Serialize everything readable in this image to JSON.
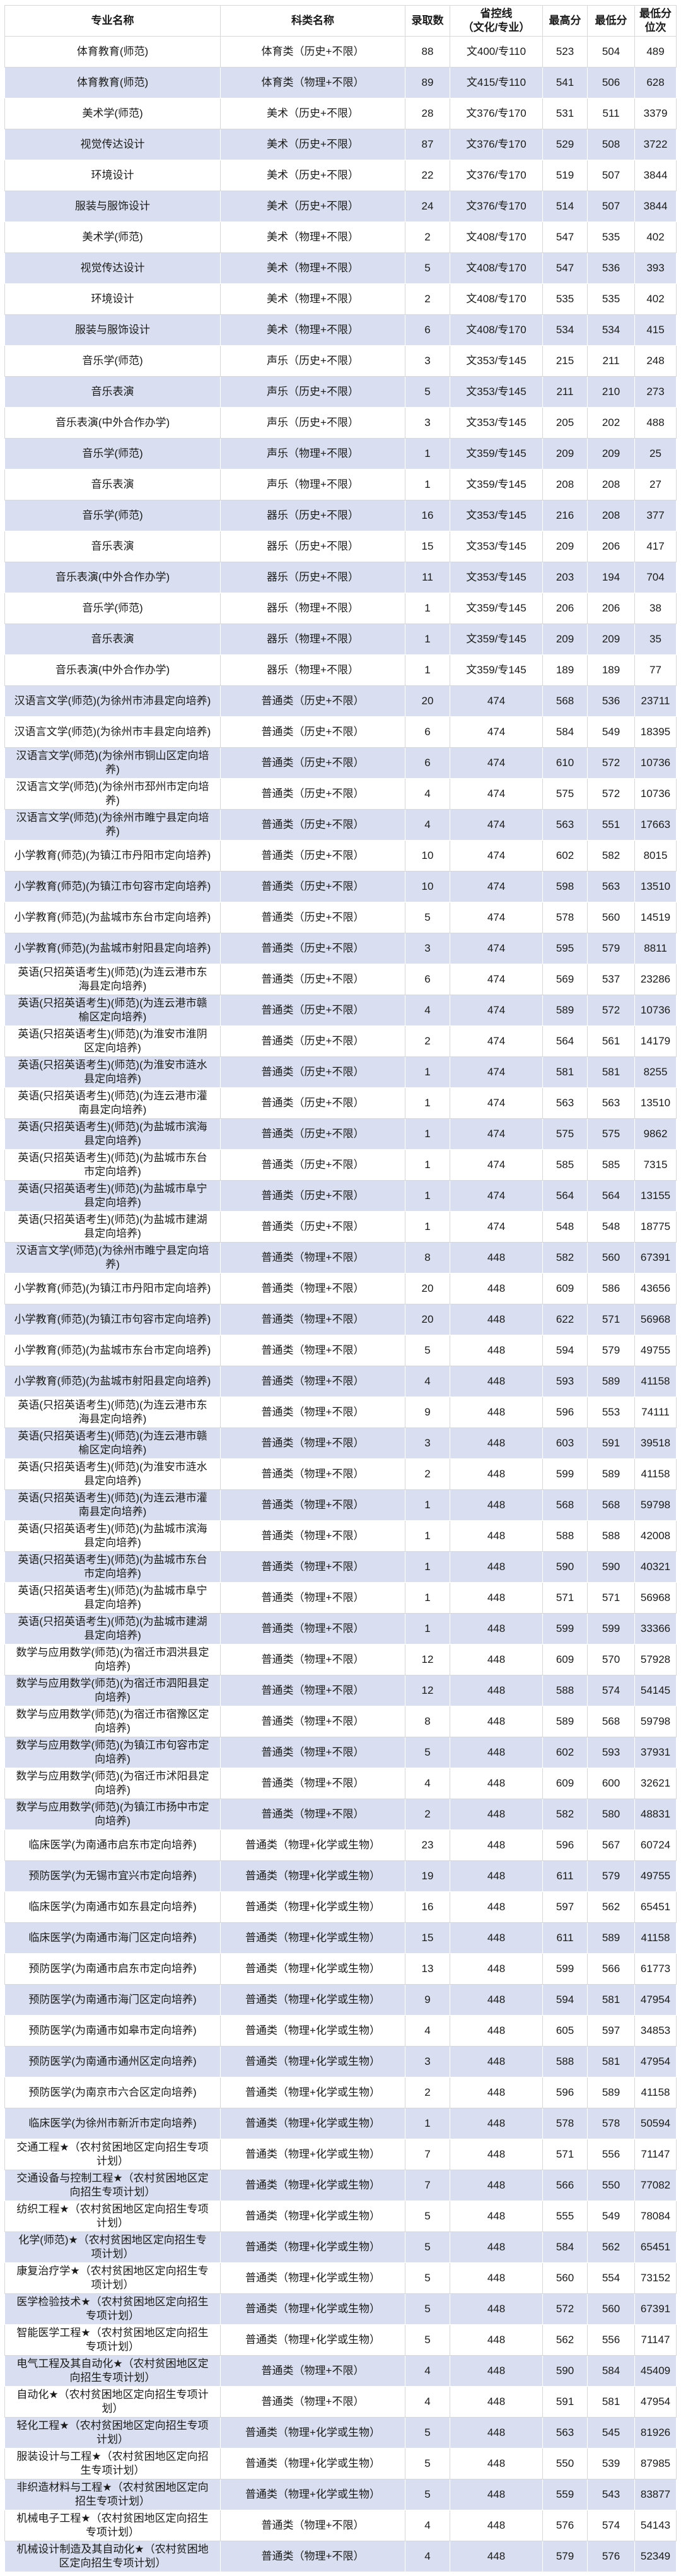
{
  "colors": {
    "row_alt_background": "#d9dff0",
    "row_background": "#ffffff",
    "grid_line": "#d8d8d8",
    "text": "#1a1a1a"
  },
  "table": {
    "columns": [
      "专业名称",
      "科类名称",
      "录取数",
      "省控线\n（文化/专业）",
      "最高分",
      "最低分",
      "最低分\n位次"
    ],
    "rows": [
      [
        "体育教育(师范)",
        "体育类（历史+不限）",
        "88",
        "文400/专110",
        "523",
        "504",
        "489"
      ],
      [
        "体育教育(师范)",
        "体育类（物理+不限）",
        "89",
        "文415/专110",
        "541",
        "506",
        "628"
      ],
      [
        "美术学(师范)",
        "美术（历史+不限）",
        "28",
        "文376/专170",
        "531",
        "511",
        "3379"
      ],
      [
        "视觉传达设计",
        "美术（历史+不限）",
        "87",
        "文376/专170",
        "529",
        "508",
        "3722"
      ],
      [
        "环境设计",
        "美术（历史+不限）",
        "22",
        "文376/专170",
        "519",
        "507",
        "3844"
      ],
      [
        "服装与服饰设计",
        "美术（历史+不限）",
        "24",
        "文376/专170",
        "514",
        "507",
        "3844"
      ],
      [
        "美术学(师范)",
        "美术（物理+不限）",
        "2",
        "文408/专170",
        "547",
        "535",
        "402"
      ],
      [
        "视觉传达设计",
        "美术（物理+不限）",
        "5",
        "文408/专170",
        "547",
        "536",
        "393"
      ],
      [
        "环境设计",
        "美术（物理+不限）",
        "2",
        "文408/专170",
        "535",
        "535",
        "402"
      ],
      [
        "服装与服饰设计",
        "美术（物理+不限）",
        "6",
        "文408/专170",
        "534",
        "534",
        "415"
      ],
      [
        "音乐学(师范)",
        "声乐（历史+不限）",
        "3",
        "文353/专145",
        "215",
        "211",
        "248"
      ],
      [
        "音乐表演",
        "声乐（历史+不限）",
        "5",
        "文353/专145",
        "211",
        "210",
        "273"
      ],
      [
        "音乐表演(中外合作办学)",
        "声乐（历史+不限）",
        "3",
        "文353/专145",
        "205",
        "202",
        "488"
      ],
      [
        "音乐学(师范)",
        "声乐（物理+不限）",
        "1",
        "文359/专145",
        "209",
        "209",
        "25"
      ],
      [
        "音乐表演",
        "声乐（物理+不限）",
        "1",
        "文359/专145",
        "208",
        "208",
        "27"
      ],
      [
        "音乐学(师范)",
        "器乐（历史+不限）",
        "16",
        "文353/专145",
        "216",
        "208",
        "377"
      ],
      [
        "音乐表演",
        "器乐（历史+不限）",
        "15",
        "文353/专145",
        "209",
        "206",
        "417"
      ],
      [
        "音乐表演(中外合作办学)",
        "器乐（历史+不限）",
        "11",
        "文353/专145",
        "203",
        "194",
        "704"
      ],
      [
        "音乐学(师范)",
        "器乐（物理+不限）",
        "1",
        "文359/专145",
        "206",
        "206",
        "38"
      ],
      [
        "音乐表演",
        "器乐（物理+不限）",
        "1",
        "文359/专145",
        "209",
        "209",
        "35"
      ],
      [
        "音乐表演(中外合作办学)",
        "器乐（物理+不限）",
        "1",
        "文359/专145",
        "189",
        "189",
        "77"
      ],
      [
        "汉语言文学(师范)(为徐州市沛县定向培养)",
        "普通类（历史+不限）",
        "20",
        "474",
        "568",
        "536",
        "23711"
      ],
      [
        "汉语言文学(师范)(为徐州市丰县定向培养)",
        "普通类（历史+不限）",
        "6",
        "474",
        "584",
        "549",
        "18395"
      ],
      [
        "汉语言文学(师范)(为徐州市铜山区定向培养)",
        "普通类（历史+不限）",
        "6",
        "474",
        "610",
        "572",
        "10736"
      ],
      [
        "汉语言文学(师范)(为徐州市邳州市定向培养)",
        "普通类（历史+不限）",
        "4",
        "474",
        "575",
        "572",
        "10736"
      ],
      [
        "汉语言文学(师范)(为徐州市睢宁县定向培养)",
        "普通类（历史+不限）",
        "4",
        "474",
        "563",
        "551",
        "17663"
      ],
      [
        "小学教育(师范)(为镇江市丹阳市定向培养)",
        "普通类（历史+不限）",
        "10",
        "474",
        "602",
        "582",
        "8015"
      ],
      [
        "小学教育(师范)(为镇江市句容市定向培养)",
        "普通类（历史+不限）",
        "10",
        "474",
        "598",
        "563",
        "13510"
      ],
      [
        "小学教育(师范)(为盐城市东台市定向培养)",
        "普通类（历史+不限）",
        "5",
        "474",
        "578",
        "560",
        "14519"
      ],
      [
        "小学教育(师范)(为盐城市射阳县定向培养)",
        "普通类（历史+不限）",
        "3",
        "474",
        "595",
        "579",
        "8811"
      ],
      [
        "英语(只招英语考生)(师范)(为连云港市东海县定向培养)",
        "普通类（历史+不限）",
        "6",
        "474",
        "569",
        "537",
        "23286"
      ],
      [
        "英语(只招英语考生)(师范)(为连云港市赣榆区定向培养)",
        "普通类（历史+不限）",
        "4",
        "474",
        "589",
        "572",
        "10736"
      ],
      [
        "英语(只招英语考生)(师范)(为淮安市淮阴区定向培养)",
        "普通类（历史+不限）",
        "2",
        "474",
        "564",
        "561",
        "14179"
      ],
      [
        "英语(只招英语考生)(师范)(为淮安市涟水县定向培养)",
        "普通类（历史+不限）",
        "1",
        "474",
        "581",
        "581",
        "8255"
      ],
      [
        "英语(只招英语考生)(师范)(为连云港市灌南县定向培养)",
        "普通类（历史+不限）",
        "1",
        "474",
        "563",
        "563",
        "13510"
      ],
      [
        "英语(只招英语考生)(师范)(为盐城市滨海县定向培养)",
        "普通类（历史+不限）",
        "1",
        "474",
        "575",
        "575",
        "9862"
      ],
      [
        "英语(只招英语考生)(师范)(为盐城市东台市定向培养)",
        "普通类（历史+不限）",
        "1",
        "474",
        "585",
        "585",
        "7315"
      ],
      [
        "英语(只招英语考生)(师范)(为盐城市阜宁县定向培养)",
        "普通类（历史+不限）",
        "1",
        "474",
        "564",
        "564",
        "13155"
      ],
      [
        "英语(只招英语考生)(师范)(为盐城市建湖县定向培养)",
        "普通类（历史+不限）",
        "1",
        "474",
        "548",
        "548",
        "18775"
      ],
      [
        "汉语言文学(师范)(为徐州市睢宁县定向培养)",
        "普通类（物理+不限）",
        "8",
        "448",
        "582",
        "560",
        "67391"
      ],
      [
        "小学教育(师范)(为镇江市丹阳市定向培养)",
        "普通类（物理+不限）",
        "20",
        "448",
        "609",
        "586",
        "43656"
      ],
      [
        "小学教育(师范)(为镇江市句容市定向培养)",
        "普通类（物理+不限）",
        "20",
        "448",
        "622",
        "571",
        "56968"
      ],
      [
        "小学教育(师范)(为盐城市东台市定向培养)",
        "普通类（物理+不限）",
        "5",
        "448",
        "594",
        "579",
        "49755"
      ],
      [
        "小学教育(师范)(为盐城市射阳县定向培养)",
        "普通类（物理+不限）",
        "4",
        "448",
        "593",
        "589",
        "41158"
      ],
      [
        "英语(只招英语考生)(师范)(为连云港市东海县定向培养)",
        "普通类（物理+不限）",
        "9",
        "448",
        "596",
        "553",
        "74111"
      ],
      [
        "英语(只招英语考生)(师范)(为连云港市赣榆区定向培养)",
        "普通类（物理+不限）",
        "3",
        "448",
        "603",
        "591",
        "39518"
      ],
      [
        "英语(只招英语考生)(师范)(为淮安市涟水县定向培养)",
        "普通类（物理+不限）",
        "2",
        "448",
        "599",
        "589",
        "41158"
      ],
      [
        "英语(只招英语考生)(师范)(为连云港市灌南县定向培养)",
        "普通类（物理+不限）",
        "1",
        "448",
        "568",
        "568",
        "59798"
      ],
      [
        "英语(只招英语考生)(师范)(为盐城市滨海县定向培养)",
        "普通类（物理+不限）",
        "1",
        "448",
        "588",
        "588",
        "42008"
      ],
      [
        "英语(只招英语考生)(师范)(为盐城市东台市定向培养)",
        "普通类（物理+不限）",
        "1",
        "448",
        "590",
        "590",
        "40321"
      ],
      [
        "英语(只招英语考生)(师范)(为盐城市阜宁县定向培养)",
        "普通类（物理+不限）",
        "1",
        "448",
        "571",
        "571",
        "56968"
      ],
      [
        "英语(只招英语考生)(师范)(为盐城市建湖县定向培养)",
        "普通类（物理+不限）",
        "1",
        "448",
        "599",
        "599",
        "33366"
      ],
      [
        "数学与应用数学(师范)(为宿迁市泗洪县定向培养)",
        "普通类（物理+不限）",
        "12",
        "448",
        "609",
        "570",
        "57928"
      ],
      [
        "数学与应用数学(师范)(为宿迁市泗阳县定向培养)",
        "普通类（物理+不限）",
        "12",
        "448",
        "588",
        "574",
        "54145"
      ],
      [
        "数学与应用数学(师范)(为宿迁市宿豫区定向培养)",
        "普通类（物理+不限）",
        "8",
        "448",
        "589",
        "568",
        "59798"
      ],
      [
        "数学与应用数学(师范)(为镇江市句容市定向培养)",
        "普通类（物理+不限）",
        "5",
        "448",
        "602",
        "593",
        "37931"
      ],
      [
        "数学与应用数学(师范)(为宿迁市沭阳县定向培养)",
        "普通类（物理+不限）",
        "4",
        "448",
        "609",
        "600",
        "32621"
      ],
      [
        "数学与应用数学(师范)(为镇江市扬中市定向培养)",
        "普通类（物理+不限）",
        "2",
        "448",
        "582",
        "580",
        "48831"
      ],
      [
        "临床医学(为南通市启东市定向培养)",
        "普通类（物理+化学或生物）",
        "23",
        "448",
        "596",
        "567",
        "60724"
      ],
      [
        "预防医学(为无锡市宜兴市定向培养)",
        "普通类（物理+化学或生物）",
        "19",
        "448",
        "611",
        "579",
        "49755"
      ],
      [
        "临床医学(为南通市如东县定向培养)",
        "普通类（物理+化学或生物）",
        "16",
        "448",
        "597",
        "562",
        "65451"
      ],
      [
        "临床医学(为南通市海门区定向培养)",
        "普通类（物理+化学或生物）",
        "15",
        "448",
        "611",
        "589",
        "41158"
      ],
      [
        "预防医学(为南通市启东市定向培养)",
        "普通类（物理+化学或生物）",
        "13",
        "448",
        "599",
        "566",
        "61773"
      ],
      [
        "预防医学(为南通市海门区定向培养)",
        "普通类（物理+化学或生物）",
        "9",
        "448",
        "594",
        "581",
        "47954"
      ],
      [
        "预防医学(为南通市如皋市定向培养)",
        "普通类（物理+化学或生物）",
        "4",
        "448",
        "605",
        "597",
        "34853"
      ],
      [
        "预防医学(为南通市通州区定向培养)",
        "普通类（物理+化学或生物）",
        "3",
        "448",
        "588",
        "581",
        "47954"
      ],
      [
        "预防医学(为南京市六合区定向培养)",
        "普通类（物理+化学或生物）",
        "2",
        "448",
        "596",
        "589",
        "41158"
      ],
      [
        "临床医学(为徐州市新沂市定向培养)",
        "普通类（物理+化学或生物）",
        "1",
        "448",
        "578",
        "578",
        "50594"
      ],
      [
        "交通工程★（农村贫困地区定向招生专项计划）",
        "普通类（物理+化学或生物）",
        "7",
        "448",
        "571",
        "556",
        "71147"
      ],
      [
        "交通设备与控制工程★（农村贫困地区定向招生专项计划）",
        "普通类（物理+化学或生物）",
        "7",
        "448",
        "566",
        "550",
        "77082"
      ],
      [
        "纺织工程★（农村贫困地区定向招生专项计划）",
        "普通类（物理+化学或生物）",
        "5",
        "448",
        "555",
        "549",
        "78084"
      ],
      [
        "化学(师范)★（农村贫困地区定向招生专项计划）",
        "普通类（物理+化学或生物）",
        "5",
        "448",
        "584",
        "562",
        "65451"
      ],
      [
        "康复治疗学★（农村贫困地区定向招生专项计划）",
        "普通类（物理+化学或生物）",
        "5",
        "448",
        "560",
        "554",
        "73152"
      ],
      [
        "医学检验技术★（农村贫困地区定向招生专项计划）",
        "普通类（物理+化学或生物）",
        "5",
        "448",
        "572",
        "560",
        "67391"
      ],
      [
        "智能医学工程★（农村贫困地区定向招生专项计划）",
        "普通类（物理+化学或生物）",
        "5",
        "448",
        "562",
        "556",
        "71147"
      ],
      [
        "电气工程及其自动化★（农村贫困地区定向招生专项计划）",
        "普通类（物理+不限）",
        "4",
        "448",
        "590",
        "584",
        "45409"
      ],
      [
        "自动化★（农村贫困地区定向招生专项计划）",
        "普通类（物理+不限）",
        "4",
        "448",
        "591",
        "581",
        "47954"
      ],
      [
        "轻化工程★（农村贫困地区定向招生专项计划）",
        "普通类（物理+化学或生物）",
        "5",
        "448",
        "563",
        "545",
        "81926"
      ],
      [
        "服装设计与工程★（农村贫困地区定向招生专项计划）",
        "普通类（物理+化学或生物）",
        "5",
        "448",
        "550",
        "539",
        "87985"
      ],
      [
        "非织造材料与工程★（农村贫困地区定向招生专项计划）",
        "普通类（物理+化学或生物）",
        "5",
        "448",
        "559",
        "543",
        "83877"
      ],
      [
        "机械电子工程★（农村贫困地区定向招生专项计划）",
        "普通类（物理+不限）",
        "4",
        "448",
        "576",
        "574",
        "54143"
      ],
      [
        "机械设计制造及其自动化★（农村贫困地区定向招生专项计划）",
        "普通类（物理+不限）",
        "4",
        "448",
        "579",
        "576",
        "52349"
      ]
    ]
  }
}
